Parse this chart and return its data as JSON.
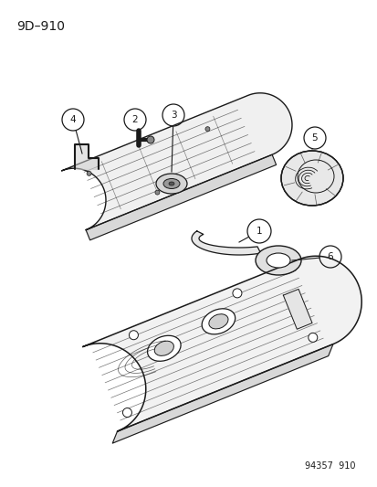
{
  "title": "9D–910",
  "footer": "94357  910",
  "bg_color": "#ffffff",
  "line_color": "#1a1a1a",
  "fig_width": 4.14,
  "fig_height": 5.33,
  "dpi": 100,
  "title_fontsize": 10,
  "footer_fontsize": 7,
  "callout_r": 0.018
}
